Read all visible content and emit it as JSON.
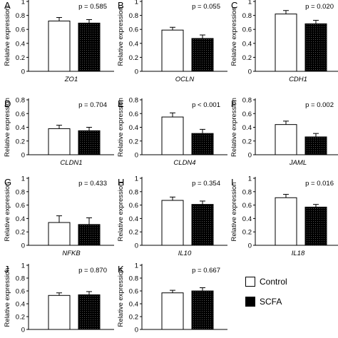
{
  "chart_data": [
    {
      "type": "bar",
      "panel": "A",
      "gene": "ZO1",
      "p_label": "p = 0.585",
      "ylabel": "Relative expression",
      "ylim": [
        0,
        1
      ],
      "yticks": [
        "0",
        "0.2",
        "0.4",
        "0.6",
        "0.8",
        "1"
      ],
      "series": [
        {
          "name": "Control",
          "value": 0.72,
          "error": 0.05
        },
        {
          "name": "SCFA",
          "value": 0.69,
          "error": 0.05
        }
      ]
    },
    {
      "type": "bar",
      "panel": "B",
      "gene": "OCLN",
      "p_label": "p = 0.055",
      "ylabel": "Relative expression",
      "ylim": [
        0,
        1
      ],
      "yticks": [
        "0",
        "0.2",
        "0.4",
        "0.6",
        "0.8",
        "1"
      ],
      "series": [
        {
          "name": "Control",
          "value": 0.59,
          "error": 0.04
        },
        {
          "name": "SCFA",
          "value": 0.47,
          "error": 0.05
        }
      ]
    },
    {
      "type": "bar",
      "panel": "C",
      "gene": "CDH1",
      "p_label": "p = 0.020",
      "ylabel": "Relative expression",
      "ylim": [
        0,
        1
      ],
      "yticks": [
        "0",
        "0.2",
        "0.4",
        "0.6",
        "0.8",
        "1"
      ],
      "series": [
        {
          "name": "Control",
          "value": 0.82,
          "error": 0.05
        },
        {
          "name": "SCFA",
          "value": 0.68,
          "error": 0.05
        }
      ]
    },
    {
      "type": "bar",
      "panel": "D",
      "gene": "CLDN1",
      "p_label": "p = 0.704",
      "ylabel": "Relative expression",
      "ylim": [
        0,
        0.8
      ],
      "yticks": [
        "0",
        "0.2",
        "0.4",
        "0.6",
        "0.8"
      ],
      "series": [
        {
          "name": "Control",
          "value": 0.38,
          "error": 0.05
        },
        {
          "name": "SCFA",
          "value": 0.35,
          "error": 0.05
        }
      ]
    },
    {
      "type": "bar",
      "panel": "E",
      "gene": "CLDN4",
      "p_label": "p < 0.001",
      "ylabel": "Relative expression",
      "ylim": [
        0,
        0.8
      ],
      "yticks": [
        "0",
        "0.2",
        "0.4",
        "0.6",
        "0.8"
      ],
      "series": [
        {
          "name": "Control",
          "value": 0.55,
          "error": 0.06
        },
        {
          "name": "SCFA",
          "value": 0.31,
          "error": 0.06
        }
      ]
    },
    {
      "type": "bar",
      "panel": "F",
      "gene": "JAML",
      "p_label": "p = 0.002",
      "ylabel": "Relative expression",
      "ylim": [
        0,
        0.8
      ],
      "yticks": [
        "0",
        "0.2",
        "0.4",
        "0.6",
        "0.8"
      ],
      "series": [
        {
          "name": "Control",
          "value": 0.44,
          "error": 0.05
        },
        {
          "name": "SCFA",
          "value": 0.26,
          "error": 0.05
        }
      ]
    },
    {
      "type": "bar",
      "panel": "G",
      "gene": "NFKB",
      "p_label": "p = 0.433",
      "ylabel": "Relative expression",
      "ylim": [
        0,
        1
      ],
      "yticks": [
        "0",
        "0.2",
        "0.4",
        "0.6",
        "0.8",
        "1"
      ],
      "series": [
        {
          "name": "Control",
          "value": 0.34,
          "error": 0.1
        },
        {
          "name": "SCFA",
          "value": 0.31,
          "error": 0.1
        }
      ]
    },
    {
      "type": "bar",
      "panel": "H",
      "gene": "IL10",
      "p_label": "p = 0.354",
      "ylabel": "Relative expression",
      "ylim": [
        0,
        1
      ],
      "yticks": [
        "0",
        "0.2",
        "0.4",
        "0.6",
        "0.8",
        "1"
      ],
      "series": [
        {
          "name": "Control",
          "value": 0.67,
          "error": 0.05
        },
        {
          "name": "SCFA",
          "value": 0.61,
          "error": 0.05
        }
      ]
    },
    {
      "type": "bar",
      "panel": "I",
      "gene": "IL18",
      "p_label": "p = 0.016",
      "ylabel": "Relative expression",
      "ylim": [
        0,
        1
      ],
      "yticks": [
        "0",
        "0.2",
        "0.4",
        "0.6",
        "0.8",
        "1"
      ],
      "series": [
        {
          "name": "Control",
          "value": 0.71,
          "error": 0.05
        },
        {
          "name": "SCFA",
          "value": 0.57,
          "error": 0.04
        }
      ]
    },
    {
      "type": "bar",
      "panel": "J",
      "gene": "",
      "p_label": "p = 0.870",
      "ylabel": "Relative expression",
      "ylim": [
        0,
        1
      ],
      "yticks": [
        "0",
        "0.2",
        "0.4",
        "0.6",
        "0.8",
        "1"
      ],
      "series": [
        {
          "name": "Control",
          "value": 0.53,
          "error": 0.04
        },
        {
          "name": "SCFA",
          "value": 0.54,
          "error": 0.05
        }
      ]
    },
    {
      "type": "bar",
      "panel": "K",
      "gene": "",
      "p_label": "p = 0.667",
      "ylabel": "Relative expression",
      "ylim": [
        0,
        1
      ],
      "yticks": [
        "0",
        "0.2",
        "0.4",
        "0.6",
        "0.8",
        "1"
      ],
      "series": [
        {
          "name": "Control",
          "value": 0.57,
          "error": 0.04
        },
        {
          "name": "SCFA",
          "value": 0.6,
          "error": 0.05
        }
      ]
    }
  ],
  "legend": {
    "items": [
      {
        "label": "Control",
        "fill": "#ffffff"
      },
      {
        "label": "SCFA",
        "fill": "#000000"
      }
    ]
  },
  "colors": {
    "control": "#ffffff",
    "scfa": "#000000",
    "axis": "#000000"
  }
}
